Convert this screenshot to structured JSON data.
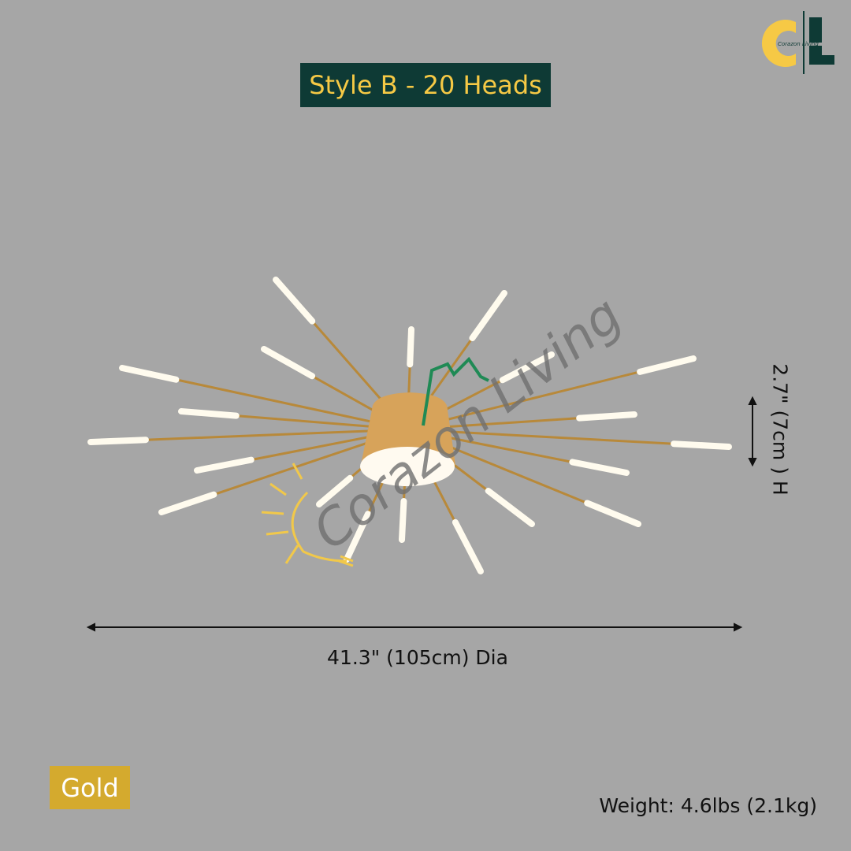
{
  "title": "Style B - 20 Heads",
  "logo": {
    "text": "Corazon Living",
    "colors": {
      "c": "#f6c945",
      "l": "#0e3a35"
    }
  },
  "watermark": "Corazon Living",
  "dimensions": {
    "diameter": "41.3\" (105cm) Dia",
    "height": "2.7\" (7cm ) H"
  },
  "color_badge": {
    "label": "Gold",
    "color": "#d4aa2e"
  },
  "weight": "Weight: 4.6lbs (2.1kg)",
  "product": {
    "heads": 20,
    "finish_color": "#b8893a"
  }
}
